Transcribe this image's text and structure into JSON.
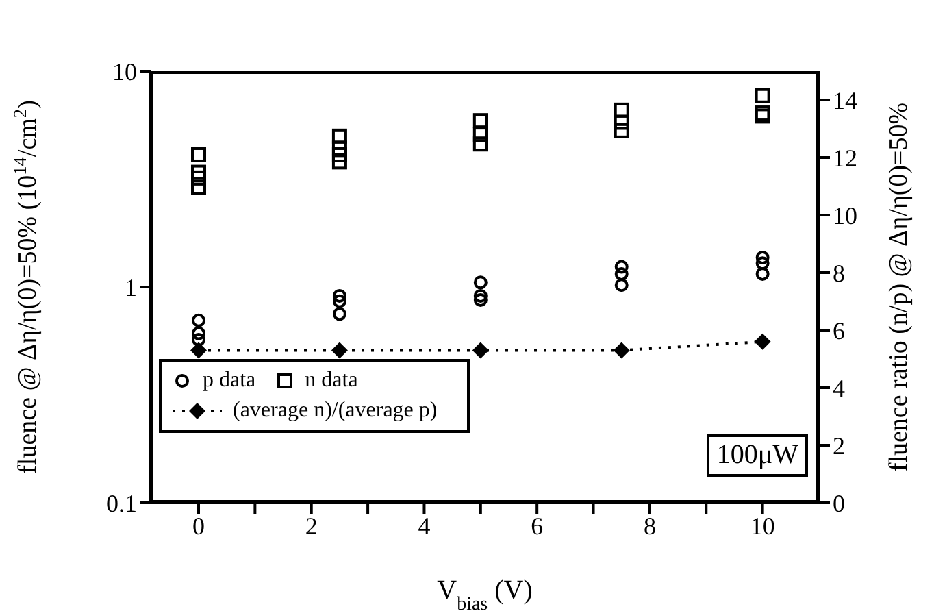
{
  "chart_data": {
    "type": "scatter",
    "xlabel": "V$_{bias}$ (V)",
    "ylabel": "fluence @ Δη/η(0)=50% (10$^{14}$/cm$^{2}$)",
    "y2label": "fluence ratio (n/p) @ Δη/η(0)=50%",
    "annotations": [
      "100μW"
    ],
    "log": "y",
    "xlim": [
      -0.85,
      11
    ],
    "xticks": [
      0,
      {
        "value": 1,
        "label": null
      },
      2,
      {
        "value": 3,
        "label": null
      },
      4,
      {
        "value": 5,
        "label": null
      },
      6,
      {
        "value": 7,
        "label": null
      },
      8,
      {
        "value": 9,
        "label": null
      },
      10
    ],
    "ylim": [
      0.1,
      10
    ],
    "yticks": [
      0.1,
      1,
      10
    ],
    "y2lim": [
      0,
      15
    ],
    "y2ticks": [
      0,
      2,
      4,
      6,
      8,
      10,
      12,
      14
    ],
    "legend": "bottom left",
    "grid": false,
    "series": [
      {
        "name": "p data",
        "type": "scatter",
        "marker": "circle",
        "color": "#000000",
        "x": [
          0,
          0,
          0,
          2.5,
          2.5,
          2.5,
          5,
          5,
          5,
          7.5,
          7.5,
          7.5,
          10,
          10,
          10
        ],
        "values": [
          0.7,
          0.61,
          0.57,
          0.91,
          0.86,
          0.75,
          1.05,
          0.91,
          0.87,
          1.24,
          1.15,
          1.02,
          1.37,
          1.29,
          1.15
        ]
      },
      {
        "name": "n data",
        "type": "scatter",
        "marker": "square",
        "color": "#000000",
        "x": [
          0,
          0,
          0,
          0,
          2.5,
          2.5,
          2.5,
          2.5,
          5,
          5,
          5,
          7.5,
          7.5,
          7.5,
          10,
          10,
          10
        ],
        "values": [
          4.1,
          3.4,
          3.2,
          2.9,
          5.0,
          4.4,
          4.1,
          3.8,
          5.9,
          5.1,
          4.6,
          6.6,
          5.8,
          5.3,
          7.7,
          6.4,
          6.2
        ]
      },
      {
        "name": "(average n)/(average p)",
        "type": "line",
        "axis": "y2",
        "marker": "diamond",
        "line_style": "dotted",
        "color": "#000000",
        "x": [
          0,
          2.5,
          5,
          7.5,
          10
        ],
        "values": [
          5.3,
          5.3,
          5.3,
          5.3,
          5.6
        ]
      }
    ]
  }
}
